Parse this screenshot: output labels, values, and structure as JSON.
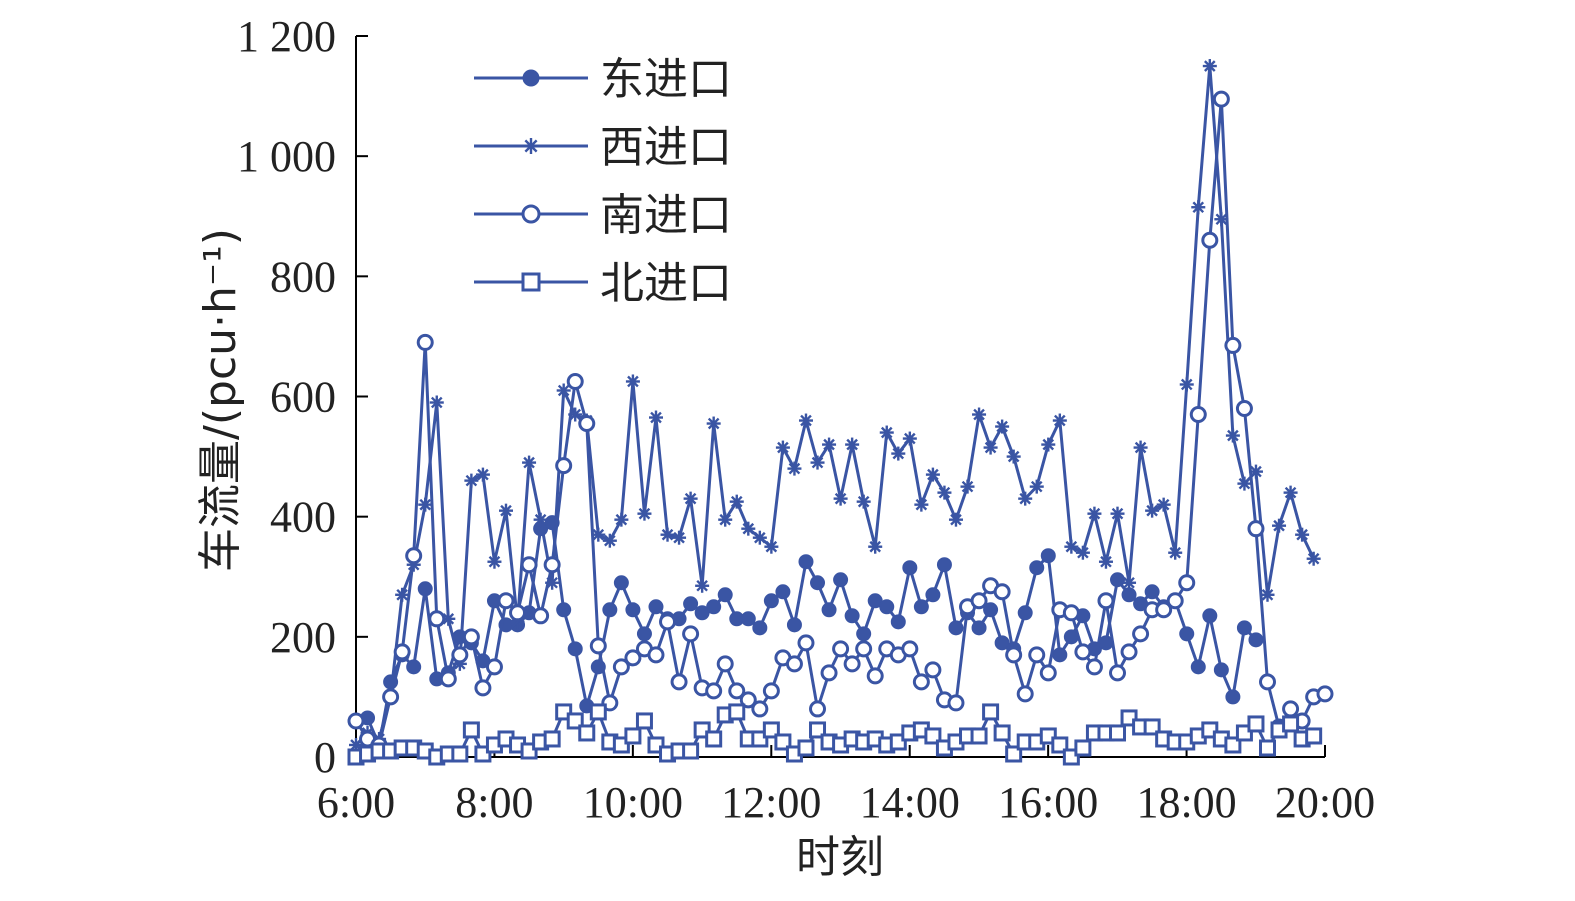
{
  "chart_data": {
    "type": "line",
    "xlabel": "时刻",
    "ylabel": "车流量/(pcu·h⁻¹)",
    "xlim": [
      0,
      14
    ],
    "ylim": [
      0,
      1200
    ],
    "x_ticks": [
      {
        "value": 0,
        "label": "6:00"
      },
      {
        "value": 2,
        "label": "8:00"
      },
      {
        "value": 4,
        "label": "10:00"
      },
      {
        "value": 6,
        "label": "12:00"
      },
      {
        "value": 8,
        "label": "14:00"
      },
      {
        "value": 10,
        "label": "16:00"
      },
      {
        "value": 12,
        "label": "18:00"
      },
      {
        "value": 14,
        "label": "20:00"
      }
    ],
    "y_ticks": [
      {
        "value": 0,
        "label": "0"
      },
      {
        "value": 200,
        "label": "200"
      },
      {
        "value": 400,
        "label": "400"
      },
      {
        "value": 600,
        "label": "600"
      },
      {
        "value": 800,
        "label": "800"
      },
      {
        "value": 1000,
        "label": "1 000"
      },
      {
        "value": 1200,
        "label": "1 200"
      }
    ],
    "x_step_hours": 0.1667,
    "color": "#3a55a4",
    "legend_position": "top-left",
    "series": [
      {
        "name": "东进口",
        "marker": "dot",
        "values": [
          60,
          65,
          20,
          125,
          170,
          150,
          280,
          130,
          140,
          200,
          190,
          160,
          260,
          220,
          220,
          240,
          380,
          390,
          245,
          180,
          85,
          150,
          245,
          290,
          245,
          205,
          250,
          230,
          230,
          255,
          240,
          250,
          270,
          230,
          230,
          215,
          260,
          275,
          220,
          325,
          290,
          245,
          295,
          235,
          205,
          260,
          250,
          225,
          315,
          250,
          270,
          320,
          215,
          240,
          215,
          245,
          190,
          180,
          240,
          315,
          335,
          170,
          200,
          235,
          180,
          190,
          295,
          270,
          255,
          275,
          250,
          260,
          205,
          150,
          235,
          145,
          100,
          215,
          195
        ]
      },
      {
        "name": "西进口",
        "marker": "asterisk",
        "values": [
          20,
          40,
          30,
          100,
          270,
          320,
          420,
          590,
          230,
          155,
          460,
          470,
          325,
          410,
          225,
          490,
          395,
          290,
          610,
          570,
          560,
          370,
          360,
          395,
          625,
          405,
          565,
          370,
          365,
          430,
          285,
          555,
          395,
          425,
          380,
          365,
          350,
          515,
          480,
          560,
          490,
          520,
          430,
          520,
          425,
          350,
          540,
          505,
          530,
          420,
          470,
          440,
          395,
          450,
          570,
          515,
          550,
          500,
          430,
          450,
          520,
          560,
          350,
          340,
          405,
          325,
          405,
          290,
          515,
          410,
          420,
          340,
          620,
          915,
          1150,
          895,
          535,
          455,
          475,
          270,
          385,
          440,
          370,
          330
        ]
      },
      {
        "name": "南进口",
        "marker": "circle",
        "values": [
          60,
          30,
          20,
          100,
          175,
          335,
          690,
          230,
          130,
          170,
          200,
          115,
          150,
          260,
          240,
          320,
          235,
          320,
          485,
          625,
          555,
          185,
          90,
          150,
          165,
          180,
          170,
          225,
          125,
          205,
          115,
          110,
          155,
          110,
          95,
          80,
          110,
          165,
          155,
          190,
          80,
          140,
          180,
          155,
          180,
          135,
          180,
          170,
          180,
          125,
          145,
          95,
          90,
          250,
          260,
          285,
          275,
          170,
          105,
          170,
          140,
          245,
          240,
          175,
          150,
          260,
          140,
          175,
          205,
          245,
          245,
          260,
          290,
          570,
          860,
          1095,
          685,
          580,
          380,
          125,
          50,
          80,
          60,
          100,
          105
        ]
      },
      {
        "name": "北进口",
        "marker": "square",
        "values": [
          0,
          5,
          10,
          10,
          15,
          15,
          10,
          0,
          5,
          5,
          45,
          5,
          20,
          30,
          20,
          10,
          25,
          30,
          75,
          60,
          40,
          75,
          25,
          20,
          35,
          60,
          20,
          5,
          10,
          10,
          45,
          30,
          70,
          75,
          30,
          30,
          45,
          25,
          5,
          15,
          45,
          25,
          20,
          30,
          25,
          30,
          20,
          25,
          40,
          45,
          35,
          15,
          25,
          35,
          35,
          75,
          40,
          5,
          25,
          25,
          35,
          20,
          0,
          15,
          40,
          40,
          40,
          65,
          50,
          50,
          30,
          25,
          25,
          35,
          45,
          30,
          20,
          40,
          55,
          15,
          45,
          55,
          30,
          35
        ]
      }
    ]
  }
}
